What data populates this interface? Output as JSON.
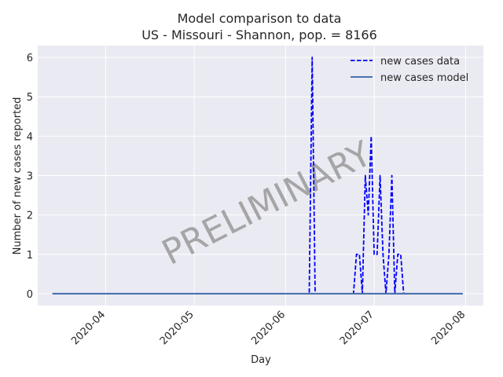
{
  "chart_data": {
    "type": "line",
    "title": "Model comparison to data",
    "subtitle": "US - Missouri - Shannon, pop. = 8166",
    "xlabel": "Day",
    "ylabel": "Number of new cases reported",
    "x_range": [
      "2020-03-09",
      "2020-08-07"
    ],
    "ylim": [
      -0.3,
      6.3
    ],
    "yticks": [
      0,
      1,
      2,
      3,
      4,
      5,
      6
    ],
    "xticks": [
      "2020-04",
      "2020-05",
      "2020-06",
      "2020-07",
      "2020-08"
    ],
    "grid": true,
    "background": "#eaeaf2",
    "legend_position": "top-right",
    "watermark": "PRELIMINARY",
    "series": [
      {
        "name": "new cases data",
        "color": "#0000ff",
        "style": "dashed",
        "start": "2020-03-14",
        "end": "2020-07-31",
        "default_value": 0,
        "points": [
          [
            "2020-06-09",
            0
          ],
          [
            "2020-06-10",
            6
          ],
          [
            "2020-06-11",
            0
          ],
          [
            "2020-06-24",
            0
          ],
          [
            "2020-06-25",
            1
          ],
          [
            "2020-06-26",
            1
          ],
          [
            "2020-06-27",
            0
          ],
          [
            "2020-06-28",
            3
          ],
          [
            "2020-06-29",
            2
          ],
          [
            "2020-06-30",
            4
          ],
          [
            "2020-07-01",
            1
          ],
          [
            "2020-07-02",
            1
          ],
          [
            "2020-07-03",
            3
          ],
          [
            "2020-07-04",
            1
          ],
          [
            "2020-07-05",
            0
          ],
          [
            "2020-07-06",
            1
          ],
          [
            "2020-07-07",
            3
          ],
          [
            "2020-07-08",
            0
          ],
          [
            "2020-07-09",
            1
          ],
          [
            "2020-07-10",
            1
          ],
          [
            "2020-07-11",
            0
          ]
        ]
      },
      {
        "name": "new cases model",
        "color": "#4c72b0",
        "style": "solid",
        "start": "2020-03-14",
        "end": "2020-07-31",
        "default_value": 0,
        "points": []
      }
    ]
  }
}
